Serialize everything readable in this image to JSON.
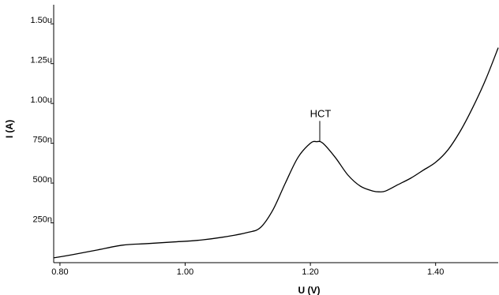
{
  "chart_data": {
    "type": "line",
    "xlabel": "U (V)",
    "ylabel": "I (A)",
    "xlim": [
      0.79,
      1.5
    ],
    "ylim": [
      0.0,
      1.62
    ],
    "x_ticks": [
      {
        "value": 0.8,
        "label": "0.80"
      },
      {
        "value": 1.0,
        "label": "1.00"
      },
      {
        "value": 1.2,
        "label": "1.20"
      },
      {
        "value": 1.4,
        "label": "1.40"
      }
    ],
    "y_ticks": [
      {
        "value": 0.25,
        "label": "250n"
      },
      {
        "value": 0.5,
        "label": "500n"
      },
      {
        "value": 0.75,
        "label": "750n"
      },
      {
        "value": 1.0,
        "label": "1.00u"
      },
      {
        "value": 1.25,
        "label": "1.25u"
      },
      {
        "value": 1.5,
        "label": "1.50u"
      }
    ],
    "grid": false,
    "series": [
      {
        "color": "#000000",
        "x": [
          0.79,
          0.82,
          0.86,
          0.9,
          0.94,
          0.98,
          1.02,
          1.06,
          1.1,
          1.12,
          1.14,
          1.16,
          1.18,
          1.2,
          1.21,
          1.22,
          1.24,
          1.26,
          1.28,
          1.3,
          1.31,
          1.32,
          1.34,
          1.36,
          1.38,
          1.4,
          1.42,
          1.44,
          1.46,
          1.48,
          1.5
        ],
        "values": [
          0.03,
          0.05,
          0.08,
          0.11,
          0.12,
          0.13,
          0.14,
          0.16,
          0.19,
          0.22,
          0.33,
          0.5,
          0.66,
          0.75,
          0.76,
          0.75,
          0.66,
          0.55,
          0.48,
          0.45,
          0.445,
          0.45,
          0.49,
          0.53,
          0.58,
          0.63,
          0.71,
          0.83,
          0.98,
          1.15,
          1.35
        ]
      }
    ],
    "annotations": [
      {
        "text": "HCT",
        "x": 1.215,
        "y_top": 0.89,
        "y_bottom": 0.76
      }
    ]
  }
}
